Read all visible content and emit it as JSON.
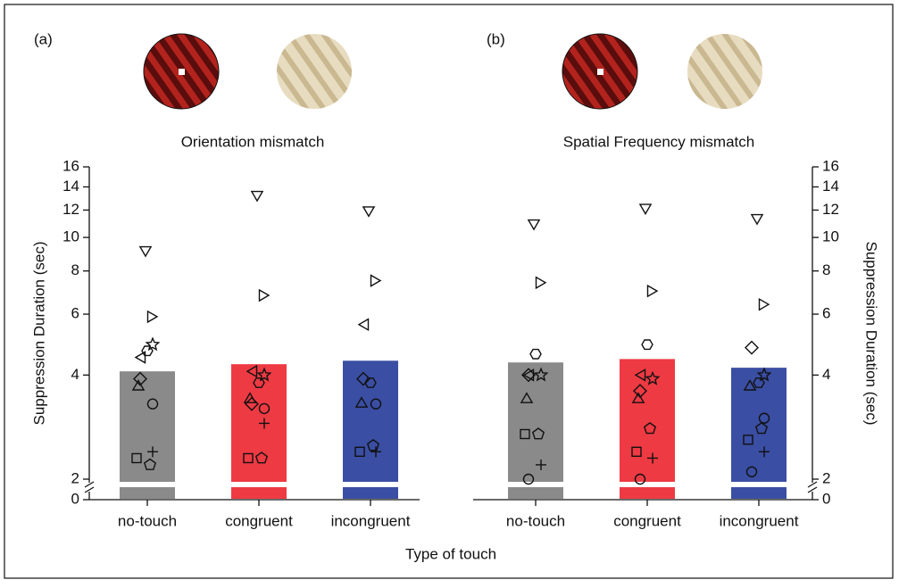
{
  "figure": {
    "xlabel": "Type of touch"
  },
  "chart_data": [
    {
      "type": "bar",
      "panel_label": "(a)",
      "title": "Orientation mismatch",
      "ylabel": "Suppression Duration (sec)",
      "axis_side": "left",
      "log_scale": true,
      "ylim": [
        2,
        16
      ],
      "yticks": [
        2,
        4,
        6,
        8,
        10,
        12,
        14,
        16
      ],
      "break_tick": 0,
      "categories": [
        "no-touch",
        "congruent",
        "incongruent"
      ],
      "values": [
        4.1,
        4.3,
        4.4
      ],
      "colors": [
        "#8a8a8a",
        "#ee3a43",
        "#3a4ea3"
      ],
      "series": [
        {
          "marker": "triangle-down",
          "values": [
            9.2,
            13.3,
            12.0
          ]
        },
        {
          "marker": "triangle-right",
          "values": [
            5.9,
            6.8,
            7.5
          ]
        },
        {
          "marker": "triangle-left",
          "values": [
            4.5,
            4.1,
            5.6
          ]
        },
        {
          "marker": "star",
          "values": [
            4.9,
            4.0,
            null
          ]
        },
        {
          "marker": "hexagon",
          "values": [
            4.7,
            3.8,
            3.8
          ]
        },
        {
          "marker": "diamond",
          "values": [
            3.9,
            3.3,
            3.9
          ]
        },
        {
          "marker": "triangle-up",
          "values": [
            3.7,
            3.4,
            3.3
          ]
        },
        {
          "marker": "circle",
          "values": [
            3.3,
            3.2,
            3.3
          ]
        },
        {
          "marker": "plus",
          "values": [
            2.4,
            2.9,
            2.4
          ]
        },
        {
          "marker": "square",
          "values": [
            2.3,
            2.3,
            2.4
          ]
        },
        {
          "marker": "pentagon",
          "values": [
            2.2,
            2.3,
            2.5
          ]
        },
        {
          "marker": "circle",
          "values": [
            null,
            null,
            null
          ]
        }
      ]
    },
    {
      "type": "bar",
      "panel_label": "(b)",
      "title": "Spatial Frequency mismatch",
      "ylabel": "Suppression Duration (sec)",
      "axis_side": "right",
      "log_scale": true,
      "ylim": [
        2,
        16
      ],
      "yticks": [
        2,
        4,
        6,
        8,
        10,
        12,
        14,
        16
      ],
      "break_tick": 0,
      "categories": [
        "no-touch",
        "congruent",
        "incongruent"
      ],
      "values": [
        4.35,
        4.45,
        4.2
      ],
      "colors": [
        "#8a8a8a",
        "#ee3a43",
        "#3a4ea3"
      ],
      "series": [
        {
          "marker": "triangle-down",
          "values": [
            11.0,
            12.2,
            11.4
          ]
        },
        {
          "marker": "triangle-right",
          "values": [
            7.4,
            7.0,
            6.4
          ]
        },
        {
          "marker": "triangle-left",
          "values": [
            4.0,
            4.0,
            null
          ]
        },
        {
          "marker": "star",
          "values": [
            4.0,
            3.9,
            4.0
          ]
        },
        {
          "marker": "hexagon",
          "values": [
            4.6,
            4.9,
            3.8
          ]
        },
        {
          "marker": "diamond",
          "values": [
            4.0,
            3.6,
            4.8
          ]
        },
        {
          "marker": "triangle-up",
          "values": [
            3.4,
            3.4,
            3.7
          ]
        },
        {
          "marker": "circle",
          "values": [
            null,
            null,
            3.0
          ]
        },
        {
          "marker": "plus",
          "values": [
            2.2,
            2.3,
            2.4
          ]
        },
        {
          "marker": "square",
          "values": [
            2.7,
            2.4,
            2.6
          ]
        },
        {
          "marker": "pentagon",
          "values": [
            2.7,
            2.8,
            2.8
          ]
        },
        {
          "marker": "circle",
          "values": [
            2.0,
            2.0,
            2.1
          ]
        }
      ]
    }
  ]
}
